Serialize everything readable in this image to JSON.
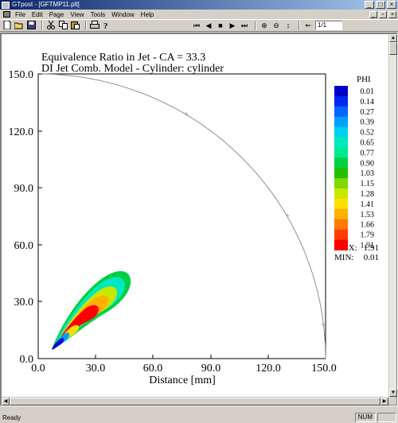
{
  "window": {
    "title": "GTpost - [GFTMP11.plt]",
    "minimize_glyph": "_",
    "maximize_glyph": "□",
    "close_glyph": "×"
  },
  "menu": {
    "items": [
      "File",
      "Edit",
      "Page",
      "View",
      "Tools",
      "Window",
      "Help"
    ],
    "mdi_minimize_glyph": "_",
    "mdi_restore_glyph": "▫",
    "mdi_close_glyph": "×"
  },
  "toolbar": {
    "left_icons": [
      "new-icon",
      "open-icon",
      "save-icon",
      "cut-icon",
      "copy-icon",
      "paste-icon",
      "print-icon",
      "help-icon"
    ],
    "first_glyph": "⏮",
    "prev_glyph": "◀",
    "stop_glyph": "■",
    "play_glyph": "▶",
    "last_glyph": "⏭",
    "zoom_in_glyph": "⊕",
    "zoom_out_glyph": "⊖",
    "fit_glyph": "↕",
    "back_glyph": "⇐",
    "page_value": "1/1"
  },
  "plot": {
    "title_line1": "Equivalence Ratio in Jet - CA =  33.3",
    "title_line2": "DI Jet Comb. Model - Cylinder: cylinder",
    "y_ticks": [
      "150.0",
      "120.0",
      "90.0",
      "60.0",
      "30.0",
      "0.0"
    ],
    "x_ticks": [
      "0.0",
      "30.0",
      "60.0",
      "90.0",
      "120.0",
      "150.0"
    ],
    "xlabel": "Distance [mm]",
    "legend_title": "PHI",
    "legend_levels": [
      "0.01",
      "0.14",
      "0.27",
      "0.39",
      "0.52",
      "0.65",
      "0.77",
      "0.90",
      "1.03",
      "1.15",
      "1.28",
      "1.41",
      "1.53",
      "1.66",
      "1.79",
      "1.91"
    ],
    "legend_colors": [
      "#0000c8",
      "#0028f0",
      "#0064ff",
      "#00a0ff",
      "#00d0f0",
      "#00e8c0",
      "#00e890",
      "#00d040",
      "#20c000",
      "#80d800",
      "#c8e800",
      "#ffe000",
      "#ffb000",
      "#ff7800",
      "#ff3c00",
      "#ff0000"
    ],
    "max_label": "MAX:",
    "max_value": "1.91",
    "min_label": "MIN:",
    "min_value": "0.01"
  },
  "status": {
    "text": "Ready",
    "num": "NUM"
  }
}
